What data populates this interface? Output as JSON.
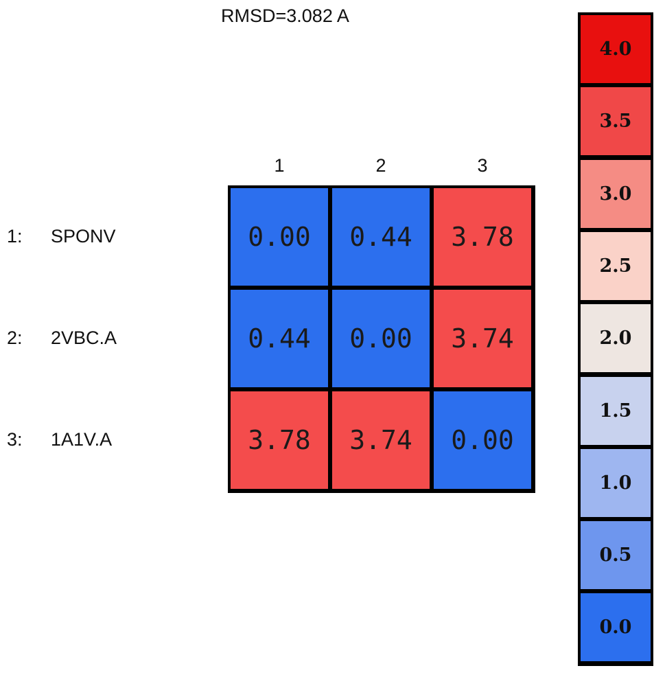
{
  "chart_data": {
    "type": "heatmap",
    "title": "RMSD=3.082 A",
    "columns": [
      "1",
      "2",
      "3"
    ],
    "rows": [
      {
        "index": "1:",
        "name": "SPONV"
      },
      {
        "index": "2:",
        "name": "2VBC.A"
      },
      {
        "index": "3:",
        "name": "1A1V.A"
      }
    ],
    "values": [
      [
        "0.00",
        "0.44",
        "3.78"
      ],
      [
        "0.44",
        "0.00",
        "3.74"
      ],
      [
        "3.78",
        "3.74",
        "0.00"
      ]
    ],
    "color_scale": [
      {
        "label": "4.0",
        "value": 4.0,
        "color": "#e8100f"
      },
      {
        "label": "3.5",
        "value": 3.5,
        "color": "#f04848"
      },
      {
        "label": "3.0",
        "value": 3.0,
        "color": "#f58c84"
      },
      {
        "label": "2.5",
        "value": 2.5,
        "color": "#fad2c8"
      },
      {
        "label": "2.0",
        "value": 2.0,
        "color": "#eee6e1"
      },
      {
        "label": "1.5",
        "value": 1.5,
        "color": "#c8d2ee"
      },
      {
        "label": "1.0",
        "value": 1.0,
        "color": "#9eb6f0"
      },
      {
        "label": "0.5",
        "value": 0.5,
        "color": "#6e96ee"
      },
      {
        "label": "0.0",
        "value": 0.0,
        "color": "#2c6fee"
      }
    ],
    "cell_colors": {
      "low": "#2c6fee",
      "high": "#f44c4c"
    }
  }
}
